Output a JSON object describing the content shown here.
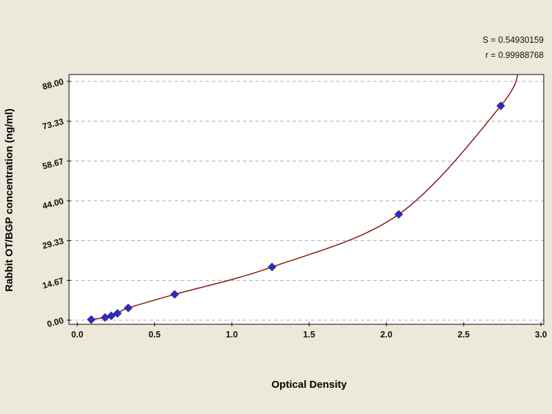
{
  "figure": {
    "background": "#ece8da",
    "plot_background": "#ffffff",
    "border_color": "#000000",
    "grid_color": "#a9a9a9"
  },
  "annotations": {
    "s_value": "S = 0.54930159",
    "r_value": "r = 0.99988768"
  },
  "chart_data": {
    "type": "scatter",
    "title": "",
    "xlabel": "Optical Density",
    "ylabel": "Rabbit OT/BGP concentration (ng/ml)",
    "xlim": [
      0,
      3.0
    ],
    "ylim": [
      0,
      88
    ],
    "x_ticks": [
      "0.0",
      "0.5",
      "1.0",
      "1.5",
      "2.0",
      "2.5",
      "3.0"
    ],
    "y_ticks": [
      "0.00",
      "14.67",
      "29.33",
      "44.00",
      "58.67",
      "73.33",
      "88.00"
    ],
    "grid": "horizontal-dashed",
    "legend": "none",
    "series": [
      {
        "name": "standard-curve",
        "marker": "diamond",
        "marker_color": "#2d2db8",
        "line_color": "#8b2121",
        "points": [
          {
            "x": 0.09,
            "y": 0.2
          },
          {
            "x": 0.18,
            "y": 1.0
          },
          {
            "x": 0.22,
            "y": 1.6
          },
          {
            "x": 0.26,
            "y": 2.5
          },
          {
            "x": 0.33,
            "y": 4.5
          },
          {
            "x": 0.63,
            "y": 9.5
          },
          {
            "x": 1.26,
            "y": 19.6
          },
          {
            "x": 2.08,
            "y": 39.0
          },
          {
            "x": 2.74,
            "y": 79.0
          }
        ],
        "curve_extension": {
          "x": 2.86,
          "y": 93
        }
      }
    ]
  }
}
